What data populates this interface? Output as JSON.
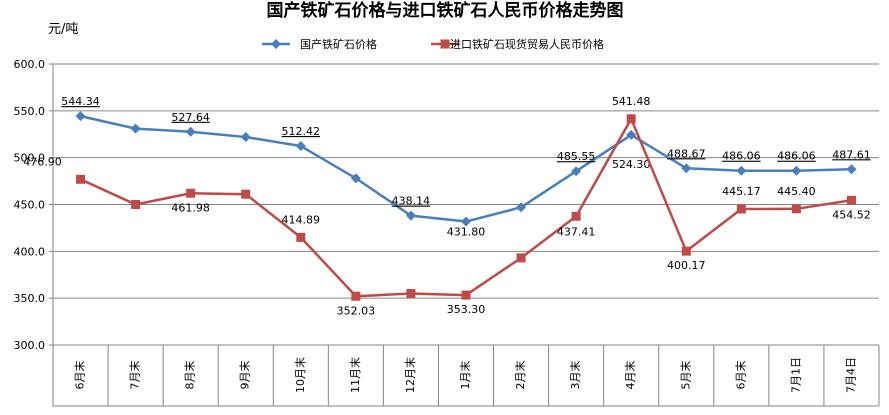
{
  "chart_data": {
    "type": "line",
    "title": "国产铁矿石价格与进口铁矿石人民币价格走势图",
    "unit_label": "元/吨",
    "xlabel": "",
    "ylabel": "",
    "ylim": [
      300,
      600
    ],
    "y_ticks": [
      "300.0",
      "350.0",
      "400.0",
      "450.0",
      "500.0",
      "550.0",
      "600.0"
    ],
    "grid": "horizontal",
    "legend_position": "top",
    "categories": [
      "6月末",
      "7月末",
      "8月末",
      "9月末",
      "10月末",
      "11月末",
      "12月末",
      "1月末",
      "2月末",
      "3月末",
      "4月末",
      "5月末",
      "6月末",
      "7月1日",
      "7月4日"
    ],
    "series": [
      {
        "name": "国产铁矿石价格",
        "color": "#4a7ebb",
        "marker": "diamond",
        "values": [
          544.34,
          531,
          527.64,
          522,
          512.42,
          478,
          438.14,
          431.8,
          447,
          485.55,
          524.3,
          488.67,
          486.06,
          486.06,
          487.61
        ],
        "labels": [
          "544.34",
          "",
          "527.64",
          "",
          "512.42",
          "",
          "438.14",
          "431.80",
          "",
          "485.55",
          "524.30",
          "488.67",
          "486.06",
          "486.06",
          "487.61"
        ]
      },
      {
        "name": "进口铁矿石现货贸易人民币价格",
        "color": "#be4b48",
        "marker": "square",
        "values": [
          476.9,
          450,
          461.98,
          461,
          414.89,
          352.03,
          355,
          353.3,
          393,
          437.41,
          541.48,
          400.17,
          445.17,
          445.4,
          454.52
        ],
        "labels": [
          "476.90",
          "",
          "461.98",
          "",
          "414.89",
          "352.03",
          "",
          "353.30",
          "",
          "437.41",
          "541.48",
          "400.17",
          "445.17",
          "445.40",
          "454.52"
        ]
      }
    ]
  }
}
